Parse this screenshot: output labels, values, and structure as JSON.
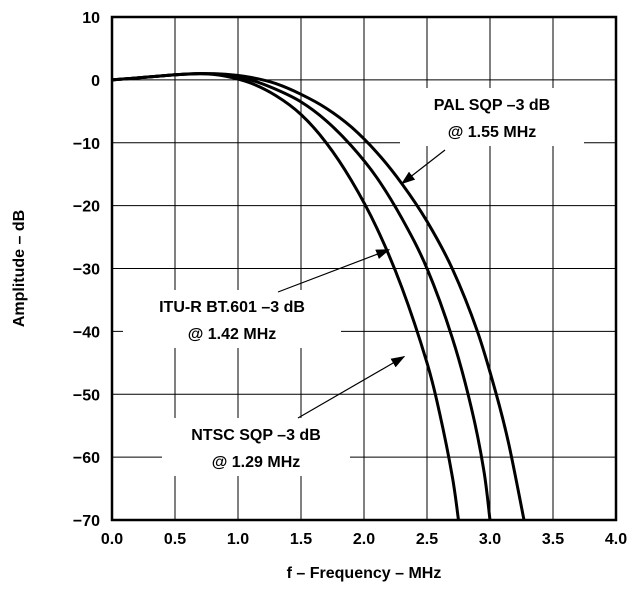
{
  "chart_data": {
    "type": "line",
    "title": "",
    "xlabel": "f – Frequency – MHz",
    "ylabel": "Amplitude – dB",
    "xlim": [
      0,
      4
    ],
    "ylim": [
      -70,
      10
    ],
    "grid": true,
    "x_ticks": [
      "0.0",
      "0.5",
      "1.0",
      "1.5",
      "2.0",
      "2.5",
      "3.0",
      "3.5",
      "4.0"
    ],
    "y_ticks": [
      "10",
      "0",
      "−10",
      "−20",
      "−30",
      "−40",
      "−50",
      "−60",
      "−70"
    ],
    "series": [
      {
        "x": [
          0,
          0.25,
          0.5,
          0.7,
          0.9,
          1.1,
          1.3,
          1.5,
          1.7,
          1.9,
          2.1,
          2.3,
          2.5,
          2.6,
          2.7,
          2.75
        ],
        "y": [
          0,
          0.4,
          0.8,
          1.0,
          0.6,
          -0.5,
          -2.5,
          -5.5,
          -10,
          -16,
          -23.5,
          -33,
          -45,
          -53,
          -63,
          -70
        ]
      },
      {
        "x": [
          0,
          0.25,
          0.5,
          0.7,
          0.9,
          1.1,
          1.3,
          1.5,
          1.7,
          1.9,
          2.1,
          2.3,
          2.5,
          2.7,
          2.85,
          2.95,
          3.0
        ],
        "y": [
          0,
          0.4,
          0.8,
          1.0,
          0.8,
          0,
          -1.5,
          -3.5,
          -6.5,
          -10.5,
          -15.5,
          -22,
          -30,
          -41,
          -52,
          -62,
          -70
        ]
      },
      {
        "x": [
          0,
          0.25,
          0.5,
          0.7,
          0.9,
          1.1,
          1.3,
          1.5,
          1.7,
          1.9,
          2.1,
          2.3,
          2.5,
          2.7,
          2.9,
          3.05,
          3.15,
          3.27
        ],
        "y": [
          0,
          0.4,
          0.8,
          1.0,
          0.9,
          0.4,
          -0.6,
          -2.3,
          -4.5,
          -7.5,
          -11.5,
          -16.5,
          -22.5,
          -30,
          -40,
          -50,
          -58,
          -70
        ]
      }
    ],
    "annotations": [
      {
        "lines": [
          "PAL SQP –3 dB",
          "@ 1.55 MHz"
        ],
        "target": [
          2.3,
          -16.5
        ]
      },
      {
        "lines": [
          "ITU-R BT.601 –3 dB",
          "@ 1.42 MHz"
        ],
        "target": [
          2.2,
          -27
        ]
      },
      {
        "lines": [
          "NTSC SQP –3 dB",
          "@ 1.29 MHz"
        ],
        "target": [
          2.32,
          -44
        ]
      }
    ]
  }
}
